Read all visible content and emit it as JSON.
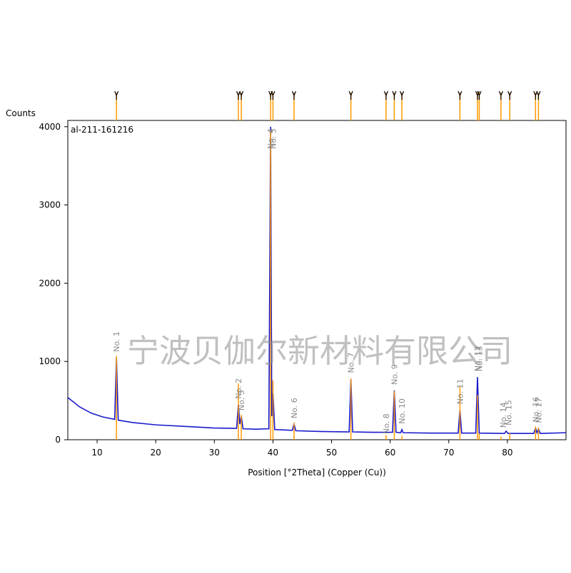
{
  "chart_data": {
    "type": "line",
    "sample_name": "al-211-161216",
    "xlabel": "Position [°2Theta] (Copper (Cu))",
    "ylabel": "Counts",
    "watermark": "宁波贝伽尔新材料有限公司",
    "xlim": [
      5,
      90
    ],
    "ylim": [
      0,
      4080
    ],
    "xticks": [
      10,
      20,
      30,
      40,
      50,
      60,
      70,
      80
    ],
    "yticks": [
      0,
      1000,
      2000,
      3000,
      4000
    ],
    "series": [
      {
        "color": "#1a1acc",
        "x": [
          5,
          7,
          9,
          11,
          13,
          13.3,
          13.6,
          16,
          20,
          25,
          30,
          33.8,
          34.1,
          34.35,
          34.6,
          34.9,
          37,
          39.3,
          39.6,
          39.8,
          40.0,
          40.3,
          43.3,
          43.6,
          43.9,
          48,
          53.0,
          53.3,
          53.6,
          57,
          60.4,
          60.7,
          61.0,
          61.8,
          62.0,
          62.2,
          67,
          71.6,
          71.9,
          72.2,
          74.6,
          74.9,
          75.2,
          79.5,
          79.8,
          80.1,
          84.5,
          84.8,
          85.05,
          85.3,
          85.6,
          90
        ],
        "values": [
          540,
          420,
          340,
          290,
          260,
          1050,
          250,
          220,
          190,
          170,
          150,
          145,
          450,
          200,
          300,
          140,
          135,
          140,
          4000,
          300,
          600,
          130,
          120,
          200,
          115,
          105,
          100,
          780,
          100,
          95,
          95,
          630,
          95,
          90,
          130,
          90,
          85,
          85,
          380,
          85,
          85,
          800,
          85,
          80,
          110,
          80,
          80,
          150,
          90,
          140,
          80,
          90
        ]
      },
      {
        "color": "#ff9900",
        "x": [
          13.3,
          34.1,
          34.6,
          39.6,
          40.0,
          43.6,
          53.3,
          59.3,
          60.7,
          62.0,
          71.9,
          74.9,
          75.2,
          78.9,
          80.4,
          84.8,
          85.3
        ],
        "values": [
          1070,
          720,
          320,
          3950,
          760,
          220,
          780,
          60,
          620,
          50,
          680,
          570,
          80,
          40,
          80,
          170,
          160
        ]
      }
    ],
    "peak_labels": [
      {
        "text": "No. 1",
        "x": 13.3
      },
      {
        "text": "No. 2",
        "x": 34.1
      },
      {
        "text": "No. 3",
        "x": 34.6
      },
      {
        "text": "No. 4",
        "x": 39.6
      },
      {
        "text": "No. 5",
        "x": 40.0
      },
      {
        "text": "No. 6",
        "x": 43.6
      },
      {
        "text": "No. 7",
        "x": 53.3
      },
      {
        "text": "No. 8",
        "x": 59.3
      },
      {
        "text": "No. 9",
        "x": 60.7
      },
      {
        "text": "No. 10",
        "x": 62.0
      },
      {
        "text": "No. 11",
        "x": 71.9
      },
      {
        "text": "No. 12",
        "x": 74.9
      },
      {
        "text": "No. 13",
        "x": 75.2
      },
      {
        "text": "No. 14",
        "x": 79.3
      },
      {
        "text": "No. 15",
        "x": 80.2
      },
      {
        "text": "No. 16",
        "x": 84.8
      },
      {
        "text": "No. 17",
        "x": 85.3
      }
    ]
  }
}
